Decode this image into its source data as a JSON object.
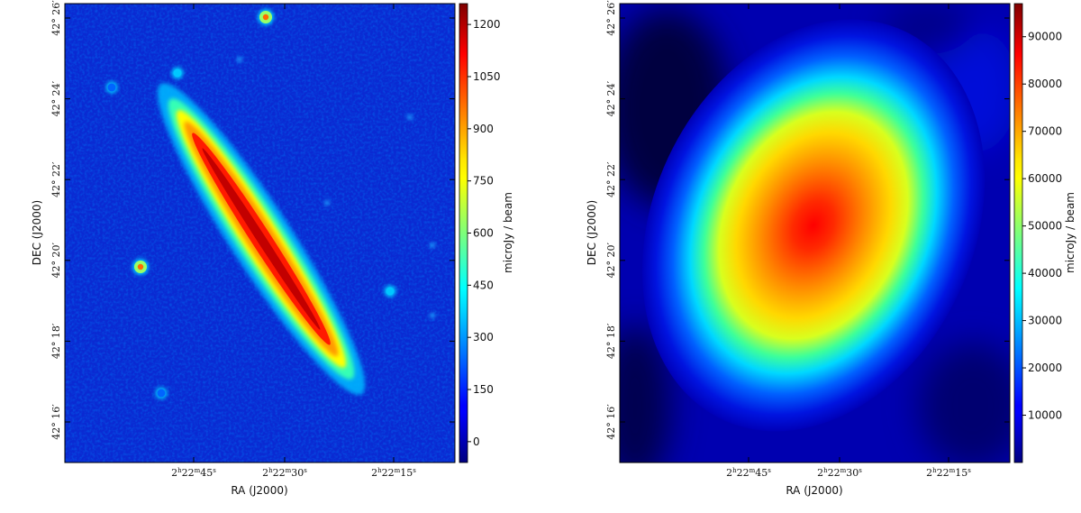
{
  "chart_data": [
    {
      "type": "heatmap",
      "title": "",
      "xlabel": "RA (J2000)",
      "ylabel": "DEC (J2000)",
      "x_ticks": [
        "2h22m45s",
        "2h22m30s",
        "2h22m15s"
      ],
      "y_ticks": [
        "42° 16′",
        "42° 18′",
        "42° 20′",
        "42° 22′",
        "42° 24′",
        "42° 26′"
      ],
      "colorbar": {
        "label": "microJy / beam",
        "ticks": [
          0,
          150,
          300,
          450,
          600,
          750,
          900,
          1050,
          1200
        ],
        "range": [
          -60,
          1260
        ]
      },
      "colormap": "jet",
      "background_level": 60,
      "features": [
        {
          "kind": "edge-on galaxy disk",
          "peak": 1250,
          "position_angle_deg": 33,
          "ra": "2h22m32s",
          "dec": "42° 20.5′"
        },
        {
          "kind": "point source",
          "peak": 820,
          "ra": "2h22m36.5s",
          "dec": "42° 26.3′"
        },
        {
          "kind": "point source",
          "peak": 780,
          "ra": "2h22m52s",
          "dec": "42° 19.8′"
        },
        {
          "kind": "point source",
          "peak": 260,
          "ra": "2h22m47s",
          "dec": "42° 24.9′"
        },
        {
          "kind": "point source",
          "peak": 280,
          "ra": "2h22m14.5s",
          "dec": "42° 19.3′"
        },
        {
          "kind": "point source",
          "peak": 180,
          "ra": "2h22m50s",
          "dec": "42° 17.0′"
        },
        {
          "kind": "point source",
          "peak": 150,
          "ra": "2h22m56s",
          "dec": "42° 24.5′"
        }
      ]
    },
    {
      "type": "heatmap",
      "title": "",
      "xlabel": "RA (J2000)",
      "ylabel": "DEC (J2000)",
      "x_ticks": [
        "2h22m45s",
        "2h22m30s",
        "2h22m15s"
      ],
      "y_ticks": [
        "42° 16′",
        "42° 18′",
        "42° 20′",
        "42° 22′",
        "42° 24′",
        "42° 26′"
      ],
      "colorbar": {
        "label": "microJy / beam",
        "ticks": [
          10000,
          20000,
          30000,
          40000,
          50000,
          60000,
          70000,
          80000,
          90000
        ],
        "range": [
          0,
          97000
        ]
      },
      "colormap": "jet",
      "features": [
        {
          "kind": "extended elliptical source",
          "peak": 96000,
          "position_angle_deg": 25,
          "ra": "2h22m32s",
          "dec": "42° 21.0′"
        }
      ]
    }
  ]
}
